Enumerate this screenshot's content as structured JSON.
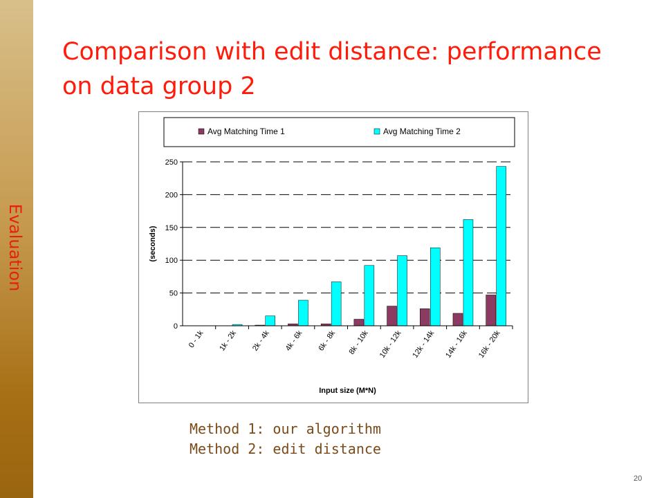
{
  "slide": {
    "section_label": "Evaluation",
    "title": "Comparison with edit distance: performance on data group 2",
    "notes": [
      "Method 1: our algorithm",
      "Method 2: edit distance"
    ],
    "page_number": "20"
  },
  "colors": {
    "sidebar_top": "#d8bf8a",
    "sidebar_bottom": "#9a6510",
    "title": "#ff1a0a",
    "section_label": "#e8210d",
    "series1": "#8b3a62",
    "series2": "#00ffff",
    "notes": "#7a4a1a"
  },
  "chart_data": {
    "type": "bar",
    "title": "",
    "xlabel": "Input size (M*N)",
    "ylabel": "(seconds)",
    "ylim": [
      0,
      250
    ],
    "yticks": [
      0,
      50,
      100,
      150,
      200,
      250
    ],
    "grid": "dashed horizontal",
    "legend_position": "top",
    "categories": [
      "0 - 1k",
      "1k - 2k",
      "2k - 4k",
      "4k - 6k",
      "6k - 8k",
      "8k - 10k",
      "10k - 12k",
      "12k - 14k",
      "14k - 16k",
      "16k - 20k"
    ],
    "series": [
      {
        "name": "Avg Matching Time 1",
        "values": [
          0,
          0,
          1,
          3,
          3,
          10,
          30,
          26,
          19,
          47
        ]
      },
      {
        "name": "Avg Matching Time 2",
        "values": [
          0,
          2,
          15,
          39,
          67,
          92,
          107,
          119,
          162,
          243
        ]
      }
    ]
  }
}
